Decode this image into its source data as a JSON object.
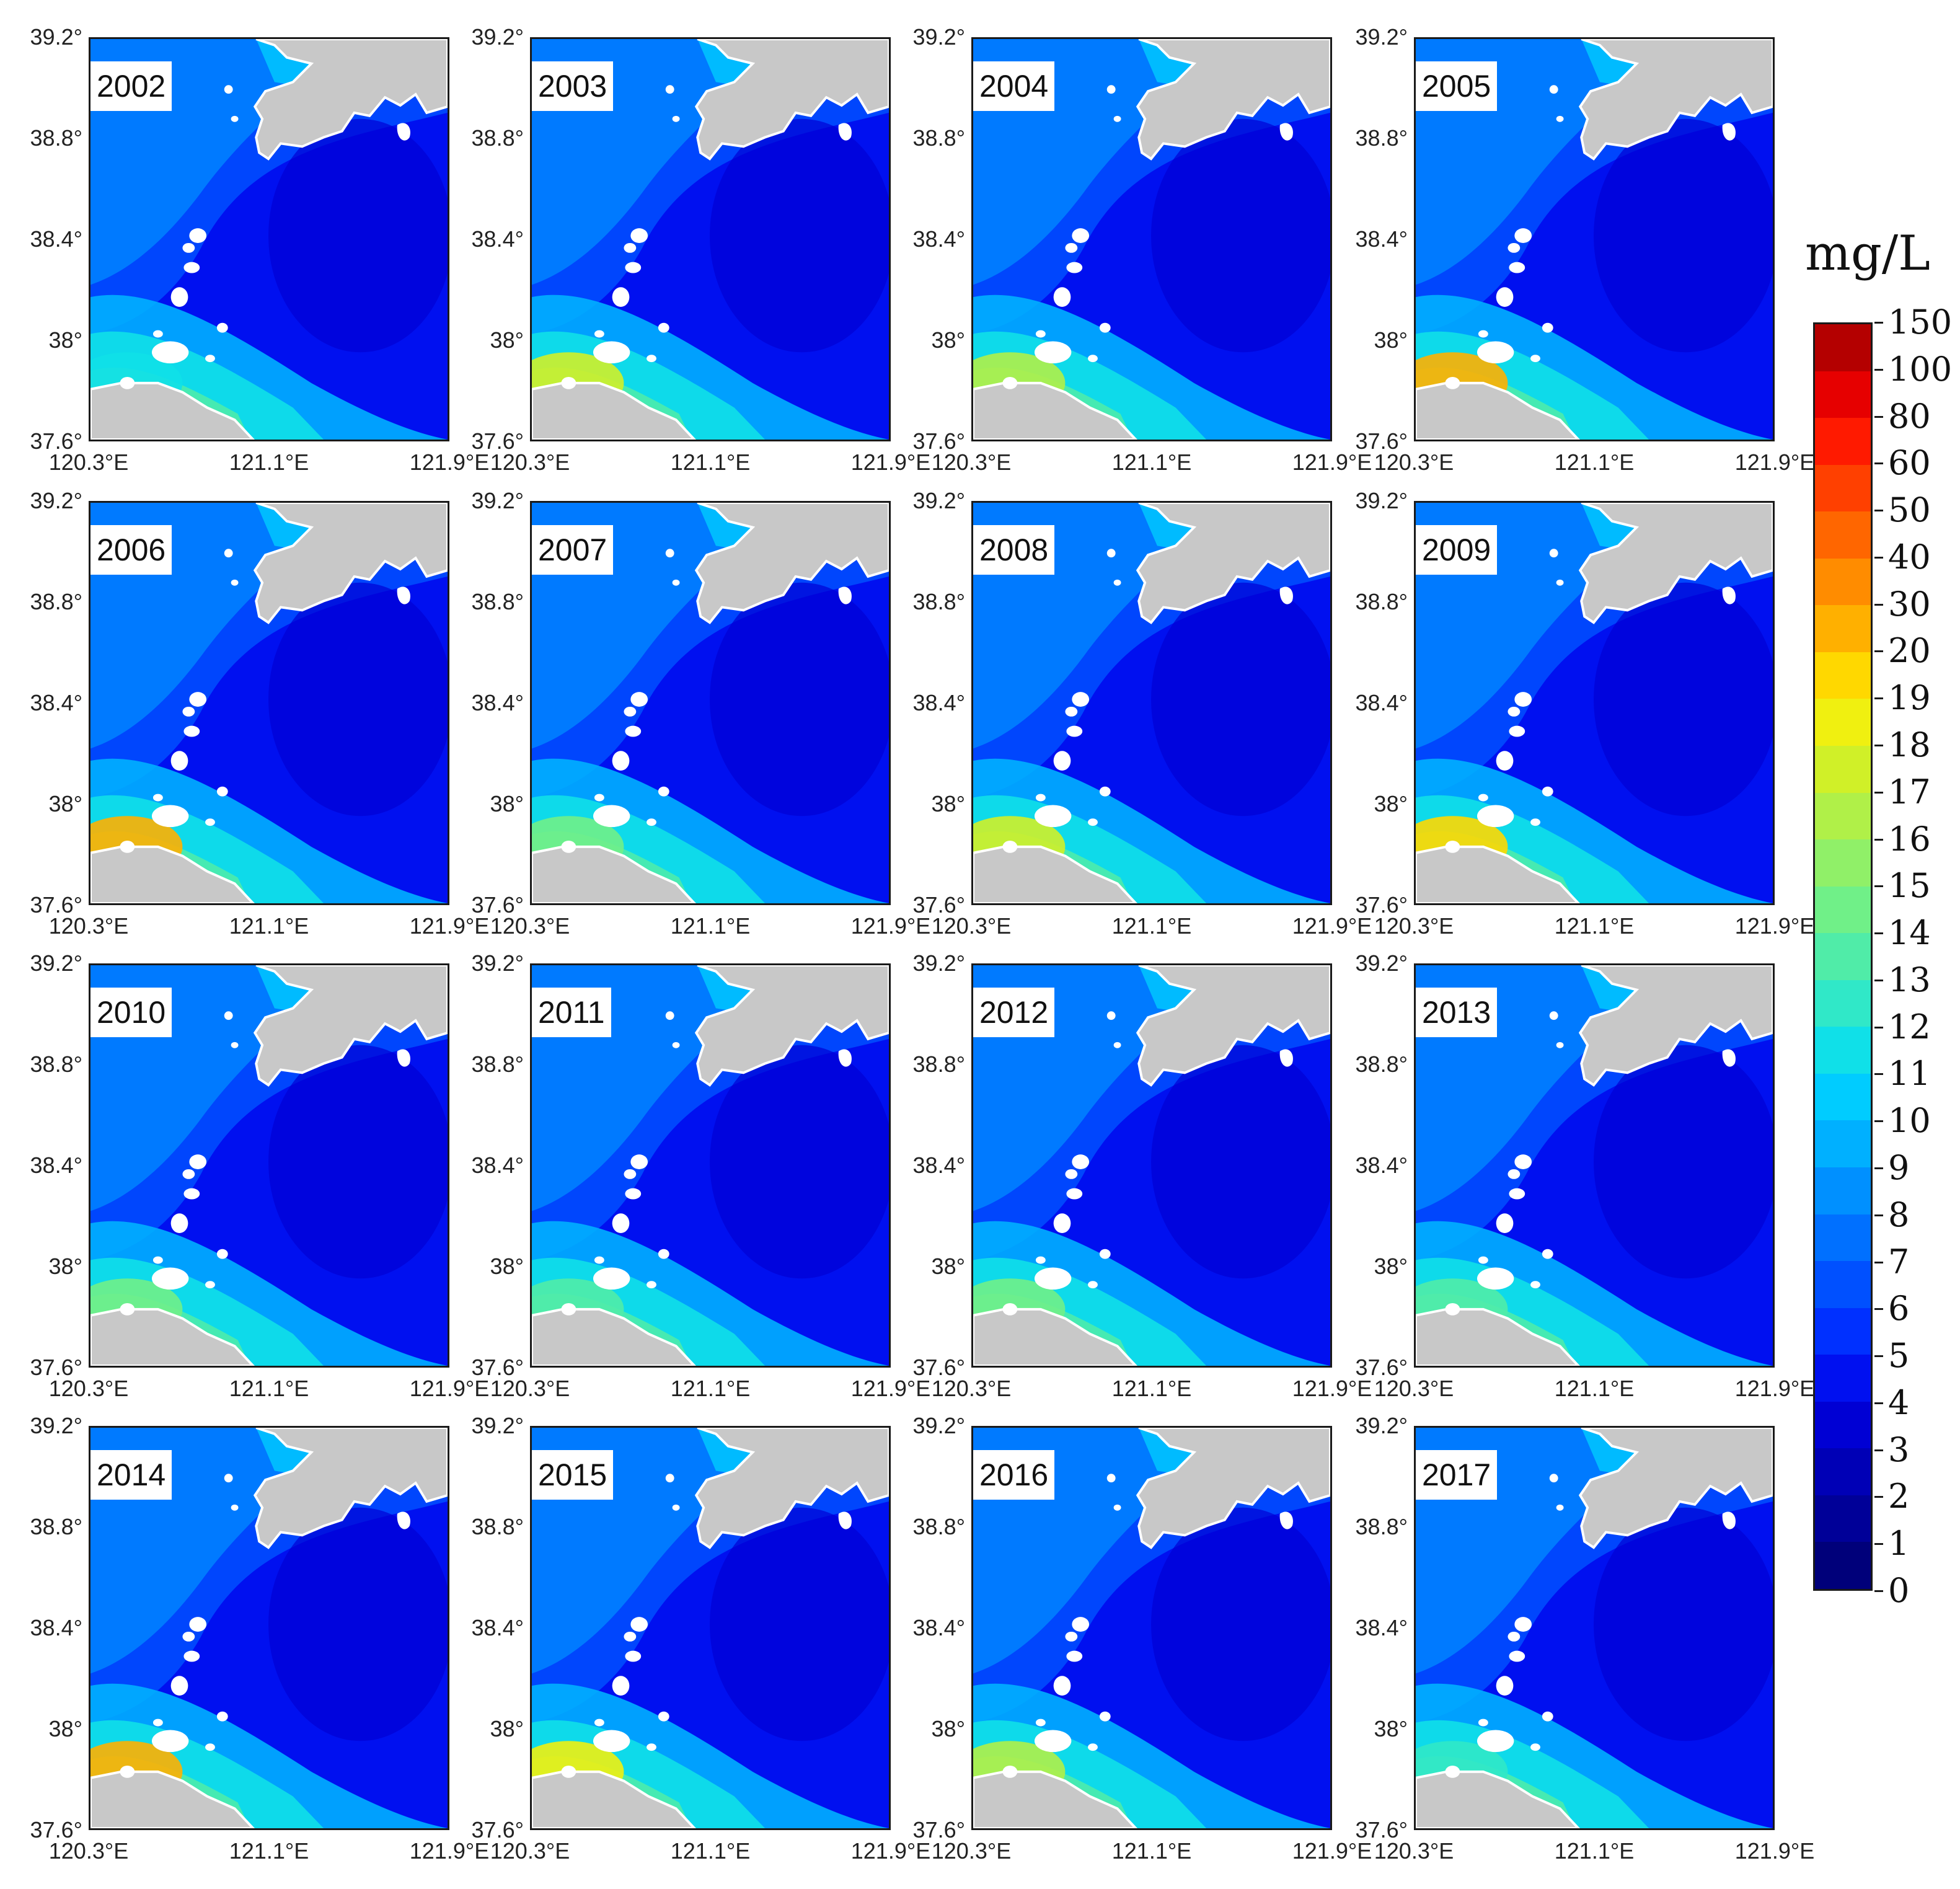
{
  "chart_data": {
    "type": "heatmap",
    "layout": "4x4 small multiples",
    "panels": [
      "2002",
      "2003",
      "2004",
      "2005",
      "2006",
      "2007",
      "2008",
      "2009",
      "2010",
      "2011",
      "2012",
      "2013",
      "2014",
      "2015",
      "2016",
      "2017"
    ],
    "x_ticks": [
      "120.3°E",
      "121.1°E",
      "121.9°E"
    ],
    "y_ticks": [
      "39.2°",
      "38.8°",
      "38.4°",
      "38°",
      "37.6°"
    ],
    "xlim": [
      120.3,
      121.9
    ],
    "ylim": [
      37.6,
      39.2
    ],
    "colorbar": {
      "unit": "mg/L",
      "labels": [
        "0",
        "1",
        "2",
        "3",
        "4",
        "5",
        "6",
        "7",
        "8",
        "9",
        "10",
        "11",
        "12",
        "13",
        "14",
        "15",
        "16",
        "17",
        "18",
        "19",
        "20",
        "30",
        "40",
        "50",
        "60",
        "80",
        "100",
        "150"
      ],
      "colors": [
        "#00007a",
        "#000098",
        "#0000b6",
        "#0000d4",
        "#0010f0",
        "#0030ff",
        "#0050ff",
        "#0070ff",
        "#0090ff",
        "#00b0ff",
        "#00ccff",
        "#10e0e8",
        "#30e8c8",
        "#50eca8",
        "#70f088",
        "#90f068",
        "#b0f048",
        "#d0f028",
        "#f0f010",
        "#ffd800",
        "#ffb000",
        "#ff8c00",
        "#ff6600",
        "#ff4000",
        "#ff1a00",
        "#e60000",
        "#b40000"
      ]
    },
    "land_color": "#c8c8c8",
    "grid": false,
    "colorbar_position": "right"
  }
}
